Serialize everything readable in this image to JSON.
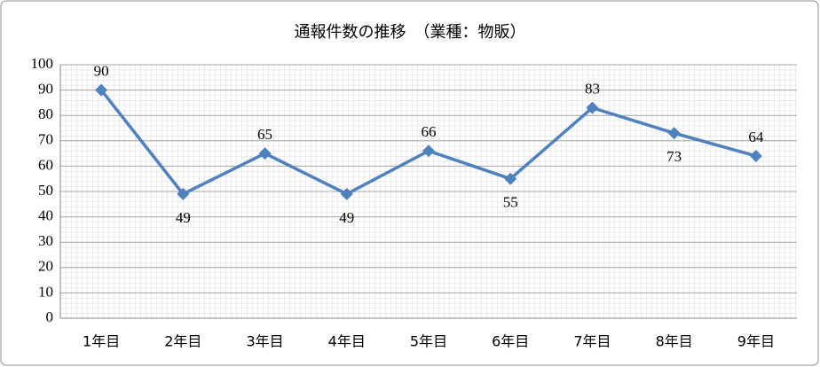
{
  "chart_data": {
    "type": "line",
    "title": "通報件数の推移　（業種：物販）",
    "categories": [
      "1年目",
      "2年目",
      "3年目",
      "4年目",
      "5年目",
      "6年目",
      "7年目",
      "8年目",
      "9年目"
    ],
    "series": [
      {
        "color": "#4f81bd",
        "values": [
          90,
          49,
          65,
          49,
          66,
          55,
          83,
          73,
          64
        ]
      }
    ],
    "label_positions": [
      "above",
      "below",
      "above",
      "below",
      "above",
      "below",
      "above",
      "below",
      "above"
    ],
    "ylim": [
      0,
      100
    ],
    "yticks": [
      0,
      10,
      20,
      30,
      40,
      50,
      60,
      70,
      80,
      90,
      100
    ],
    "grid": true
  }
}
